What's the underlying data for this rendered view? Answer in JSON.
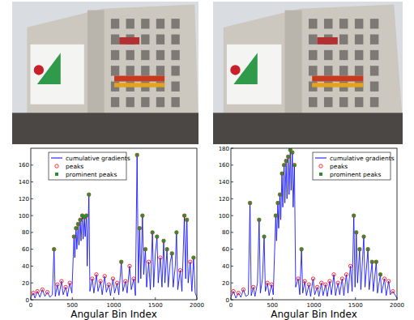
{
  "chart_data": [
    {
      "type": "line",
      "xlabel": "Angular Bin Index",
      "xlim": [
        0,
        2000
      ],
      "xticks": [
        0,
        500,
        1000,
        1500,
        2000
      ],
      "ylim": [
        0,
        180
      ],
      "yticks": [
        0,
        20,
        40,
        60,
        80,
        100,
        120,
        140,
        160
      ],
      "legend": "upper left",
      "series": [
        {
          "name": "cumulative gradients",
          "type": "line",
          "color": "#0000ff",
          "line_style": "solid",
          "x": [
            0,
            30,
            50,
            80,
            110,
            140,
            170,
            200,
            230,
            260,
            280,
            295,
            320,
            340,
            370,
            390,
            420,
            440,
            470,
            495,
            520,
            530,
            545,
            555,
            570,
            580,
            595,
            605,
            620,
            630,
            645,
            655,
            670,
            680,
            700,
            712,
            740,
            760,
            790,
            810,
            840,
            860,
            890,
            910,
            940,
            960,
            990,
            1010,
            1040,
            1060,
            1090,
            1110,
            1140,
            1160,
            1190,
            1210,
            1240,
            1260,
            1280,
            1295,
            1310,
            1325,
            1345,
            1360,
            1380,
            1395,
            1420,
            1440,
            1465,
            1480,
            1500,
            1520,
            1535,
            1560,
            1580,
            1600,
            1615,
            1640,
            1655,
            1680,
            1700,
            1715,
            1740,
            1755,
            1770,
            1800,
            1820,
            1850,
            1865,
            1880,
            1895,
            1920,
            1940,
            1960,
            1980,
            2000
          ],
          "values": [
            3,
            8,
            2,
            10,
            3,
            12,
            4,
            9,
            3,
            6,
            60,
            4,
            18,
            5,
            22,
            6,
            15,
            4,
            20,
            8,
            75,
            50,
            85,
            60,
            90,
            65,
            95,
            70,
            100,
            72,
            98,
            75,
            100,
            40,
            125,
            10,
            25,
            8,
            30,
            10,
            22,
            6,
            28,
            9,
            18,
            5,
            25,
            8,
            20,
            6,
            45,
            10,
            22,
            8,
            40,
            12,
            25,
            5,
            172,
            20,
            85,
            25,
            100,
            30,
            60,
            15,
            45,
            12,
            80,
            15,
            55,
            75,
            20,
            50,
            15,
            70,
            20,
            60,
            15,
            45,
            55,
            15,
            40,
            80,
            12,
            35,
            10,
            100,
            25,
            95,
            20,
            45,
            10,
            50,
            8,
            3
          ]
        },
        {
          "name": "peaks",
          "type": "scatter",
          "marker": "circle",
          "color": "#ff0000",
          "x": [
            30,
            80,
            140,
            200,
            280,
            320,
            370,
            420,
            470,
            520,
            545,
            570,
            595,
            620,
            645,
            670,
            700,
            740,
            790,
            840,
            890,
            940,
            990,
            1040,
            1090,
            1140,
            1190,
            1240,
            1280,
            1310,
            1345,
            1380,
            1420,
            1465,
            1520,
            1560,
            1600,
            1640,
            1700,
            1755,
            1800,
            1850,
            1880,
            1920,
            1960
          ],
          "values": [
            8,
            10,
            12,
            9,
            60,
            18,
            22,
            15,
            20,
            75,
            85,
            90,
            95,
            100,
            98,
            100,
            125,
            25,
            30,
            22,
            28,
            18,
            25,
            20,
            45,
            22,
            40,
            25,
            172,
            85,
            100,
            60,
            45,
            80,
            75,
            50,
            70,
            60,
            55,
            80,
            35,
            100,
            95,
            45,
            50
          ]
        },
        {
          "name": "prominent peaks",
          "type": "scatter",
          "marker": "square",
          "color": "#2e8b2e",
          "x": [
            280,
            520,
            545,
            570,
            595,
            620,
            645,
            670,
            700,
            1090,
            1280,
            1310,
            1345,
            1380,
            1465,
            1520,
            1600,
            1640,
            1700,
            1755,
            1850,
            1880,
            1960
          ],
          "values": [
            60,
            75,
            85,
            90,
            95,
            100,
            98,
            100,
            125,
            45,
            172,
            85,
            100,
            60,
            80,
            75,
            70,
            60,
            55,
            80,
            100,
            95,
            50
          ]
        }
      ]
    },
    {
      "type": "line",
      "xlabel": "Angular Bin Index",
      "xlim": [
        0,
        2000
      ],
      "xticks": [
        0,
        500,
        1000,
        1500,
        2000
      ],
      "ylim": [
        0,
        180
      ],
      "yticks": [
        0,
        20,
        40,
        60,
        80,
        100,
        120,
        140,
        160,
        180
      ],
      "legend": "upper right",
      "series": [
        {
          "name": "cumulative gradients",
          "type": "line",
          "color": "#0000ff",
          "line_style": "solid",
          "x": [
            0,
            30,
            60,
            90,
            120,
            150,
            180,
            210,
            230,
            245,
            270,
            290,
            320,
            340,
            355,
            380,
            400,
            415,
            440,
            460,
            490,
            510,
            540,
            550,
            565,
            575,
            590,
            600,
            615,
            625,
            640,
            650,
            665,
            675,
            690,
            700,
            715,
            725,
            740,
            750,
            765,
            780,
            810,
            830,
            850,
            865,
            890,
            910,
            940,
            960,
            990,
            1010,
            1040,
            1060,
            1090,
            1110,
            1140,
            1160,
            1190,
            1210,
            1240,
            1260,
            1290,
            1310,
            1340,
            1360,
            1390,
            1410,
            1440,
            1460,
            1480,
            1495,
            1510,
            1525,
            1550,
            1565,
            1600,
            1615,
            1650,
            1665,
            1700,
            1715,
            1750,
            1765,
            1800,
            1815,
            1850,
            1870,
            1900,
            1920,
            1950,
            2000
          ],
          "values": [
            3,
            10,
            2,
            8,
            3,
            12,
            4,
            6,
            115,
            5,
            15,
            4,
            20,
            95,
            8,
            25,
            75,
            10,
            20,
            5,
            18,
            6,
            100,
            70,
            115,
            85,
            125,
            95,
            150,
            110,
            160,
            115,
            165,
            120,
            170,
            125,
            178,
            130,
            175,
            110,
            160,
            15,
            25,
            6,
            60,
            8,
            22,
            5,
            18,
            4,
            25,
            6,
            15,
            4,
            20,
            5,
            18,
            4,
            22,
            6,
            30,
            5,
            20,
            6,
            25,
            5,
            30,
            8,
            40,
            10,
            100,
            15,
            80,
            20,
            60,
            12,
            75,
            15,
            60,
            12,
            45,
            10,
            45,
            8,
            30,
            8,
            25,
            5,
            22,
            6,
            10,
            2
          ]
        },
        {
          "name": "peaks",
          "type": "scatter",
          "marker": "circle",
          "color": "#ff0000",
          "x": [
            30,
            90,
            150,
            230,
            270,
            340,
            400,
            440,
            490,
            540,
            565,
            590,
            615,
            640,
            665,
            690,
            715,
            740,
            765,
            810,
            850,
            890,
            940,
            990,
            1040,
            1090,
            1140,
            1190,
            1240,
            1290,
            1340,
            1390,
            1440,
            1480,
            1510,
            1550,
            1600,
            1650,
            1700,
            1750,
            1800,
            1850,
            1900,
            1950
          ],
          "values": [
            10,
            8,
            12,
            115,
            15,
            95,
            75,
            20,
            18,
            100,
            115,
            125,
            150,
            160,
            165,
            170,
            178,
            175,
            160,
            25,
            60,
            22,
            18,
            25,
            15,
            20,
            18,
            22,
            30,
            20,
            25,
            30,
            40,
            100,
            80,
            60,
            75,
            60,
            45,
            45,
            30,
            25,
            22,
            10
          ]
        },
        {
          "name": "prominent peaks",
          "type": "scatter",
          "marker": "square",
          "color": "#2e8b2e",
          "x": [
            230,
            340,
            400,
            540,
            565,
            590,
            615,
            640,
            665,
            690,
            715,
            740,
            765,
            850,
            1480,
            1510,
            1550,
            1600,
            1650,
            1700,
            1750,
            1800
          ],
          "values": [
            115,
            95,
            75,
            100,
            115,
            125,
            150,
            160,
            165,
            170,
            178,
            175,
            160,
            60,
            100,
            80,
            60,
            75,
            60,
            45,
            45,
            30
          ]
        }
      ]
    }
  ]
}
